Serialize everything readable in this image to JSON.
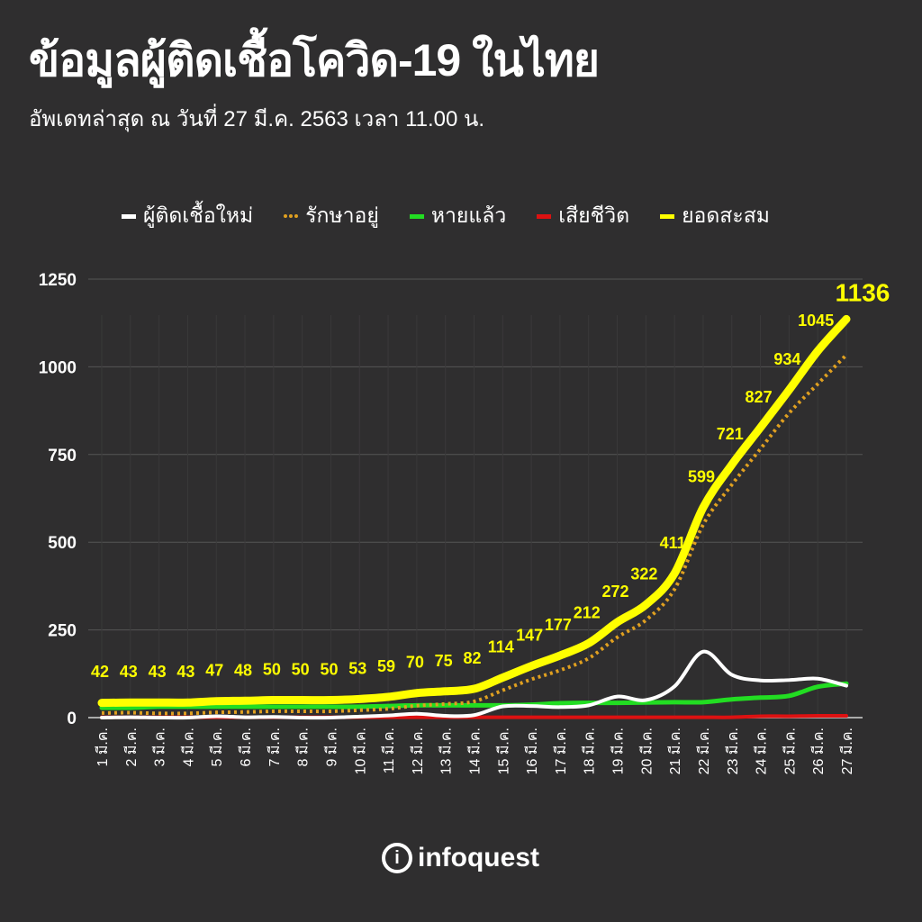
{
  "title": "ข้อมูลผู้ติดเชื้อโควิด-19 ในไทย",
  "subtitle": "อัพเดทล่าสุด ณ วันที่ 27 มี.ค. 2563 เวลา 11.00 น.",
  "logo": "infoquest",
  "chart_data": {
    "type": "line",
    "title": "ข้อมูลผู้ติดเชื้อโควิด-19 ในไทย",
    "ylim": [
      0,
      1250
    ],
    "yticks": [
      "0",
      "250",
      "500",
      "750",
      "1000",
      "1250"
    ],
    "grid": true,
    "legend_placement": "top",
    "categories": [
      "1 มี.ค.",
      "2 มี.ค.",
      "3 มี.ค.",
      "4 มี.ค.",
      "5 มี.ค.",
      "6 มี.ค.",
      "7 มี.ค.",
      "8 มี.ค.",
      "9 มี.ค.",
      "10 มี.ค.",
      "11 มี.ค.",
      "12 มี.ค.",
      "13 มี.ค.",
      "14 มี.ค.",
      "15 มี.ค.",
      "16 มี.ค.",
      "17 มี.ค.",
      "18 มี.ค.",
      "19 มี.ค.",
      "20 มี.ค.",
      "21 มี.ค.",
      "22 มี.ค.",
      "23 มี.ค.",
      "24 มี.ค.",
      "25 มี.ค.",
      "26 มี.ค.",
      "27 มี.ค."
    ],
    "series": [
      {
        "name": "ผู้ติดเชื้อใหม่",
        "color": "#ffffff",
        "style": "solid",
        "values": [
          0,
          1,
          0,
          0,
          4,
          1,
          2,
          0,
          0,
          3,
          6,
          11,
          5,
          7,
          32,
          33,
          30,
          35,
          60,
          50,
          89,
          188,
          122,
          106,
          107,
          111,
          91
        ]
      },
      {
        "name": "รักษาอยู่",
        "color": "#e0a020",
        "style": "dotted",
        "values": [
          13,
          14,
          12,
          12,
          15,
          16,
          18,
          18,
          18,
          21,
          25,
          34,
          39,
          46,
          78,
          109,
          135,
          169,
          229,
          278,
          366,
          550,
          664,
          766,
          868,
          951,
          1034
        ]
      },
      {
        "name": "หายแล้ว",
        "color": "#22dd22",
        "style": "solid",
        "values": [
          28,
          28,
          31,
          31,
          31,
          31,
          31,
          31,
          31,
          31,
          33,
          35,
          35,
          35,
          35,
          37,
          41,
          42,
          42,
          43,
          44,
          44,
          52,
          57,
          62,
          88,
          97
        ]
      },
      {
        "name": "เสียชีวิต",
        "color": "#dd1111",
        "style": "solid",
        "values": [
          1,
          1,
          1,
          1,
          1,
          1,
          1,
          1,
          1,
          1,
          1,
          1,
          1,
          1,
          1,
          1,
          1,
          1,
          1,
          1,
          1,
          1,
          1,
          4,
          4,
          5,
          5
        ]
      },
      {
        "name": "ยอดสะสม",
        "color": "#ffff00",
        "style": "solid",
        "values": [
          42,
          43,
          43,
          43,
          47,
          48,
          50,
          50,
          50,
          53,
          59,
          70,
          75,
          82,
          114,
          147,
          177,
          212,
          272,
          322,
          411,
          599,
          721,
          827,
          934,
          1045,
          1136
        ]
      }
    ],
    "data_labels_series": "ยอดสะสม"
  }
}
